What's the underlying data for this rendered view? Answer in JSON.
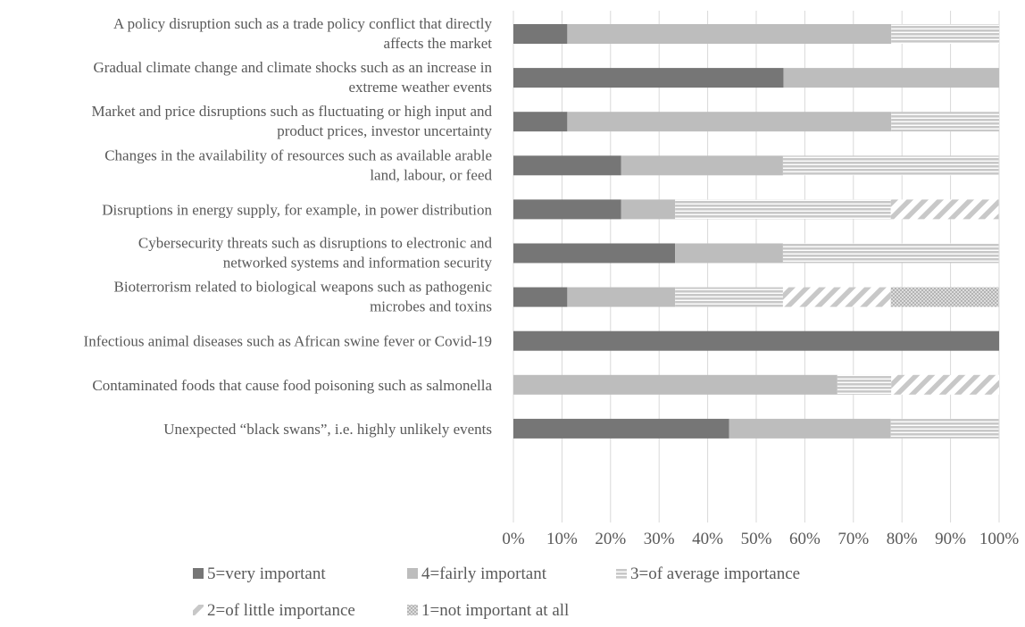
{
  "chart_data": {
    "type": "bar",
    "orientation": "horizontal",
    "stacked": "percent",
    "title": "",
    "xlabel": "",
    "ylabel": "",
    "xlim": [
      0,
      100
    ],
    "x_ticks": [
      "0%",
      "10%",
      "20%",
      "30%",
      "40%",
      "50%",
      "60%",
      "70%",
      "80%",
      "90%",
      "100%"
    ],
    "grid": "vertical",
    "legend_position": "bottom",
    "categories": [
      [
        "A policy disruption such as a trade policy conflict that directly",
        "affects the market"
      ],
      [
        "Gradual climate change and climate shocks such as an increase in",
        "extreme weather events"
      ],
      [
        "Market and price disruptions such as fluctuating or high input and",
        "product prices, investor uncertainty"
      ],
      [
        "Changes in the availability of resources such as available arable",
        "land, labour, or feed"
      ],
      [
        "Disruptions in energy supply, for example, in power distribution"
      ],
      [
        "Cybersecurity threats such as disruptions to electronic and",
        "networked systems and information security"
      ],
      [
        "Bioterrorism related to biological weapons such as pathogenic",
        "microbes and toxins"
      ],
      [
        "Infectious animal diseases such as African swine fever or Covid-19"
      ],
      [
        "Contaminated foods that cause food poisoning such as salmonella"
      ],
      [
        "Unexpected “black swans”, i.e. highly unlikely events"
      ]
    ],
    "series": [
      {
        "name": "5=very important",
        "color": "#767676",
        "pattern": "solid",
        "values": [
          11.1,
          55.6,
          11.1,
          22.2,
          22.2,
          33.3,
          11.1,
          100,
          0,
          44.4
        ]
      },
      {
        "name": "4=fairly important",
        "color": "#bdbdbd",
        "pattern": "solid",
        "values": [
          66.7,
          44.4,
          66.7,
          33.3,
          11.1,
          22.2,
          22.2,
          0,
          66.7,
          33.3
        ]
      },
      {
        "name": "3=of average importance",
        "color": "#c8c8c8",
        "pattern": "horizontal-lines",
        "values": [
          22.2,
          0,
          22.2,
          44.4,
          44.4,
          44.4,
          22.2,
          0,
          11.1,
          22.2
        ]
      },
      {
        "name": "2=of little importance",
        "color": "#c8c8c8",
        "pattern": "diagonal-lines",
        "values": [
          0,
          0,
          0,
          0,
          22.2,
          0,
          22.2,
          0,
          22.2,
          0
        ]
      },
      {
        "name": "1=not important at all",
        "color": "#c8c8c8",
        "pattern": "dots",
        "values": [
          0,
          0,
          0,
          0,
          0,
          0,
          22.2,
          0,
          0,
          0
        ]
      }
    ]
  }
}
